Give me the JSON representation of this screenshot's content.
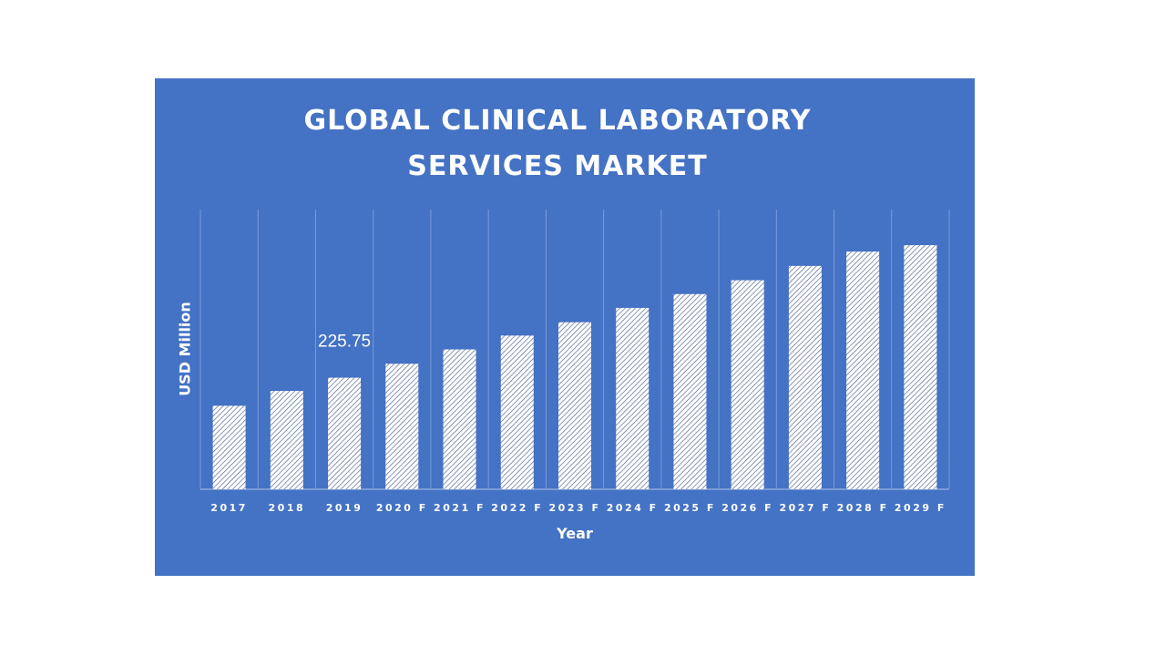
{
  "chart_data": {
    "type": "bar",
    "title": "GLOBAL CLINICAL LABORATORY SERVICES MARKET",
    "title_lines": [
      "GLOBAL CLINICAL LABORATORY",
      "SERVICES MARKET"
    ],
    "xlabel": "Year",
    "ylabel": "USD Million",
    "categories": [
      "2017",
      "2018",
      "2019",
      "2020 F",
      "2021 F",
      "2022 F",
      "2023 F",
      "2024 F",
      "2025 F",
      "2026 F",
      "2027 F",
      "2028 F",
      "2029 F"
    ],
    "values": [
      169,
      199,
      225.75,
      254,
      283,
      311,
      338,
      367,
      395,
      423,
      452,
      481,
      494
    ],
    "data_labels": [
      {
        "category": "2019",
        "text": "225.75"
      }
    ],
    "ylim": [
      0,
      566
    ],
    "grid": "vertical category separators",
    "bar_fill": "white diagonal hatch",
    "colors": {
      "background": "#4472c4",
      "bar": "#ffffff",
      "text": "#ffffff",
      "grid": "#7a9bd6"
    }
  }
}
